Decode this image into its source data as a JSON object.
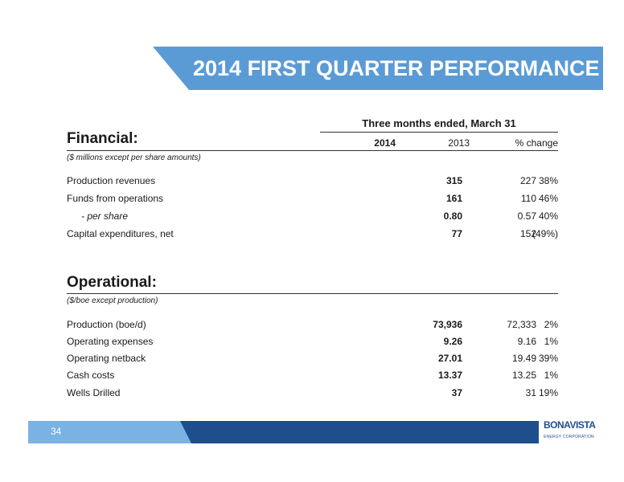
{
  "title": "2014 FIRST QUARTER PERFORMANCE",
  "table_header": {
    "group": "Three months ended, March 31",
    "col1": "2014",
    "col2": "2013",
    "col3": "% change"
  },
  "financial": {
    "title": "Financial:",
    "note": "($ millions except per share amounts)",
    "rows": [
      {
        "label": "Production revenues",
        "v2014": "315",
        "v2013": "227",
        "change": "38%"
      },
      {
        "label": "Funds from operations",
        "v2014": "161",
        "v2013": "110",
        "change": "46%"
      },
      {
        "label": "- per share",
        "v2014": "0.80",
        "v2013": "0.57",
        "change": "40%"
      },
      {
        "label": "Capital expenditures, net",
        "v2014": "77",
        "v2013": "152",
        "change": "(49%)"
      }
    ]
  },
  "operational": {
    "title": "Operational:",
    "note": "($/boe except production)",
    "rows": [
      {
        "label": "Production (boe/d)",
        "v2014": "73,936",
        "v2013": "72,333",
        "change": "2%"
      },
      {
        "label": "Operating expenses",
        "v2014": "9.26",
        "v2013": "9.16",
        "change": "1%"
      },
      {
        "label": "Operating netback",
        "v2014": "27.01",
        "v2013": "19.49",
        "change": "39%"
      },
      {
        "label": "Cash costs",
        "v2014": "13.37",
        "v2013": "13.25",
        "change": "1%"
      },
      {
        "label": "Wells Drilled",
        "v2014": "37",
        "v2013": "31",
        "change": "19%"
      }
    ]
  },
  "footer": {
    "page_number": "34",
    "logo_main": "BONAVISTA",
    "logo_sub": "ENERGY CORPORATION"
  },
  "colors": {
    "banner": "#5b9bd5",
    "footer_light": "#7ab2e3",
    "footer_dark": "#1f4e8c"
  }
}
